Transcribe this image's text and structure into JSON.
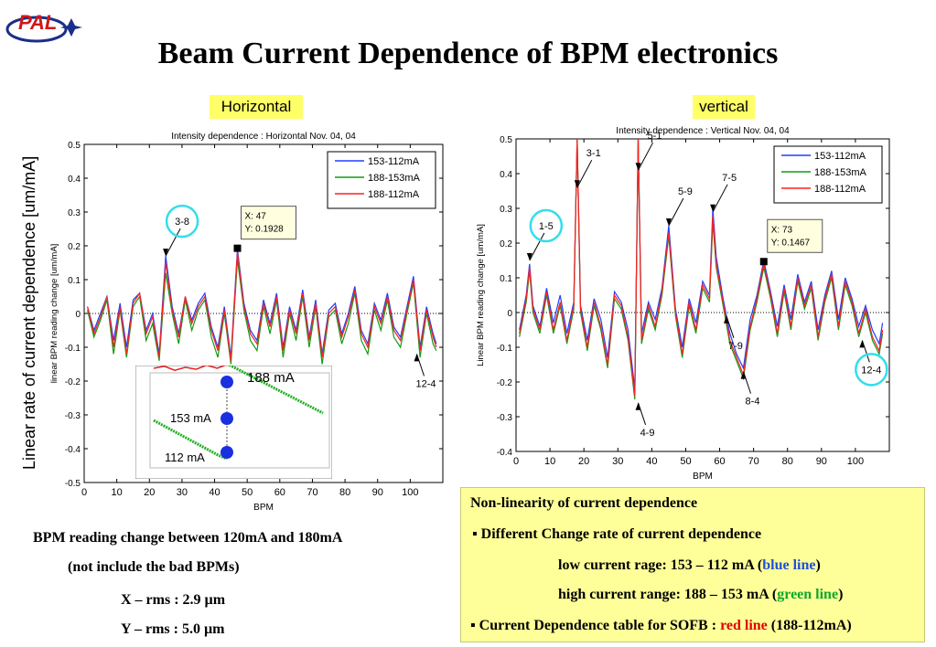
{
  "logo_text": "PAL",
  "title": "Beam Current Dependence of BPM electronics",
  "left_label": "Horizontal",
  "right_label": "vertical",
  "outer_ylabel": "Linear rate of current dependence  [um/mA]",
  "colors": {
    "blue": "#1f3fff",
    "green": "#149a14",
    "red": "#ff2020",
    "pill": "#ffff66",
    "circle": "#33ddee"
  },
  "chart_data": [
    {
      "type": "line",
      "title": "Intensity dependence : Horizontal    Nov. 04, 04",
      "xlabel": "BPM",
      "ylabel": "linear BPM reading change  [um/mA]",
      "xlim": [
        0,
        110
      ],
      "ylim": [
        -0.5,
        0.5
      ],
      "xticks": [
        0,
        10,
        20,
        30,
        40,
        50,
        60,
        70,
        80,
        90,
        100
      ],
      "yticks": [
        "0.5",
        "0.4",
        "0.3",
        "0.2",
        "0.1",
        "0",
        "-0.1",
        "-0.2",
        "-0.3",
        "-0.4",
        "-0.5"
      ],
      "legend": [
        "153-112mA",
        "188-153mA",
        "188-112mA"
      ],
      "legend_position": "top-right",
      "datatip": {
        "x_text": "X: 47",
        "y_text": "Y: 0.1928",
        "x": 47,
        "y": 0.1928
      },
      "annotations": [
        {
          "text": "3-8",
          "x": 25,
          "y": 0.17,
          "circled": true
        },
        {
          "text": "12-4",
          "x": 102,
          "y": -0.12,
          "circled": false
        }
      ],
      "x": [
        1,
        3,
        5,
        7,
        9,
        11,
        13,
        15,
        17,
        19,
        21,
        23,
        25,
        27,
        29,
        31,
        33,
        35,
        37,
        39,
        41,
        43,
        45,
        47,
        49,
        51,
        53,
        55,
        57,
        59,
        61,
        63,
        65,
        67,
        69,
        71,
        73,
        75,
        77,
        79,
        81,
        83,
        85,
        87,
        89,
        91,
        93,
        95,
        97,
        99,
        101,
        103,
        105,
        107,
        108
      ],
      "series": [
        {
          "name": "153-112mA",
          "values": [
            0.02,
            -0.05,
            0.0,
            0.05,
            -0.08,
            0.03,
            -0.1,
            0.04,
            0.06,
            -0.05,
            0.0,
            -0.12,
            0.17,
            0.02,
            -0.06,
            0.05,
            -0.02,
            0.03,
            0.06,
            -0.04,
            -0.1,
            0.02,
            -0.13,
            0.19,
            0.03,
            -0.05,
            -0.08,
            0.04,
            -0.03,
            0.06,
            -0.1,
            0.02,
            -0.05,
            0.07,
            -0.07,
            0.04,
            -0.12,
            0.01,
            0.03,
            -0.06,
            0.0,
            0.08,
            -0.05,
            -0.09,
            0.03,
            -0.02,
            0.06,
            -0.04,
            -0.07,
            0.02,
            0.11,
            -0.1,
            0.02,
            -0.06,
            -0.09
          ]
        },
        {
          "name": "188-153mA",
          "values": [
            0.01,
            -0.07,
            -0.02,
            0.04,
            -0.12,
            0.01,
            -0.13,
            0.02,
            0.05,
            -0.08,
            -0.03,
            -0.14,
            0.12,
            0.0,
            -0.09,
            0.04,
            -0.05,
            0.01,
            0.04,
            -0.07,
            -0.13,
            0.0,
            -0.15,
            0.16,
            0.01,
            -0.08,
            -0.11,
            0.02,
            -0.06,
            0.04,
            -0.13,
            0.0,
            -0.08,
            0.05,
            -0.1,
            0.02,
            -0.15,
            -0.01,
            0.01,
            -0.09,
            -0.03,
            0.06,
            -0.08,
            -0.12,
            0.01,
            -0.05,
            0.04,
            -0.07,
            -0.1,
            0.0,
            0.09,
            -0.13,
            0.0,
            -0.09,
            -0.11
          ]
        },
        {
          "name": "188-112mA",
          "values": [
            0.02,
            -0.06,
            -0.01,
            0.05,
            -0.1,
            0.02,
            -0.12,
            0.03,
            0.06,
            -0.06,
            -0.01,
            -0.13,
            0.15,
            0.01,
            -0.07,
            0.05,
            -0.03,
            0.02,
            0.05,
            -0.05,
            -0.11,
            0.01,
            -0.14,
            0.18,
            0.02,
            -0.06,
            -0.09,
            0.03,
            -0.04,
            0.05,
            -0.11,
            0.01,
            -0.06,
            0.06,
            -0.08,
            0.03,
            -0.13,
            0.0,
            0.02,
            -0.07,
            -0.01,
            0.07,
            -0.06,
            -0.1,
            0.02,
            -0.03,
            0.05,
            -0.05,
            -0.08,
            0.01,
            0.1,
            -0.11,
            0.01,
            -0.07,
            -0.1
          ]
        }
      ]
    },
    {
      "type": "line",
      "title": "Intensity dependence : Vertical      Nov. 04, 04",
      "xlabel": "BPM",
      "ylabel": "Linear BPM reading change  [um/mA]",
      "xlim": [
        0,
        110
      ],
      "ylim": [
        -0.4,
        0.5
      ],
      "xticks": [
        0,
        10,
        20,
        30,
        40,
        50,
        60,
        70,
        80,
        90,
        100
      ],
      "yticks": [
        "0.5",
        "0.4",
        "0.3",
        "0.2",
        "0.1",
        "0",
        "-0.1",
        "-0.2",
        "-0.3",
        "-0.4"
      ],
      "legend": [
        "153-112mA",
        "188-153mA",
        "188-112mA"
      ],
      "legend_position": "top-right",
      "datatip": {
        "x_text": "X: 73",
        "y_text": "Y: 0.1467",
        "x": 73,
        "y": 0.1467
      },
      "annotations": [
        {
          "text": "3-1",
          "x": 18,
          "y": 0.36,
          "circled": false
        },
        {
          "text": "5-1",
          "x": 36,
          "y": 0.41,
          "circled": false
        },
        {
          "text": "1-5",
          "x": 4,
          "y": 0.15,
          "circled": true
        },
        {
          "text": "5-9",
          "x": 45,
          "y": 0.25,
          "circled": false
        },
        {
          "text": "7-5",
          "x": 58,
          "y": 0.29,
          "circled": false
        },
        {
          "text": "7-9",
          "x": 62,
          "y": -0.01,
          "circled": false
        },
        {
          "text": "8-4",
          "x": 67,
          "y": -0.17,
          "circled": false
        },
        {
          "text": "4-9",
          "x": 36,
          "y": -0.26,
          "circled": false
        },
        {
          "text": "12-4",
          "x": 102,
          "y": -0.08,
          "circled": true
        }
      ],
      "x": [
        1,
        3,
        4,
        5,
        7,
        9,
        11,
        13,
        15,
        17,
        18,
        19,
        21,
        23,
        25,
        27,
        29,
        31,
        33,
        35,
        36,
        37,
        39,
        41,
        43,
        45,
        47,
        49,
        51,
        53,
        55,
        57,
        58,
        59,
        61,
        63,
        65,
        67,
        69,
        71,
        73,
        75,
        77,
        79,
        81,
        83,
        85,
        87,
        89,
        91,
        93,
        95,
        97,
        99,
        101,
        103,
        105,
        107,
        108
      ],
      "series": [
        {
          "name": "153-112mA",
          "values": [
            -0.05,
            0.05,
            0.14,
            0.02,
            -0.04,
            0.07,
            -0.03,
            0.05,
            -0.06,
            0.03,
            0.5,
            0.02,
            -0.08,
            0.04,
            -0.02,
            -0.13,
            0.06,
            0.03,
            -0.05,
            -0.22,
            0.5,
            -0.06,
            0.03,
            -0.02,
            0.07,
            0.25,
            0.01,
            -0.1,
            0.04,
            -0.03,
            0.09,
            0.05,
            0.3,
            0.16,
            0.04,
            -0.06,
            -0.12,
            -0.16,
            -0.02,
            0.05,
            0.15,
            0.06,
            -0.04,
            0.08,
            -0.02,
            0.11,
            0.03,
            0.09,
            -0.05,
            0.05,
            0.12,
            -0.02,
            0.1,
            0.04,
            -0.04,
            0.02,
            -0.05,
            -0.09,
            -0.03
          ]
        },
        {
          "name": "188-153mA",
          "values": [
            -0.07,
            0.03,
            0.12,
            0.0,
            -0.06,
            0.05,
            -0.06,
            0.02,
            -0.09,
            0.01,
            0.5,
            0.0,
            -0.11,
            0.02,
            -0.05,
            -0.16,
            0.04,
            0.01,
            -0.08,
            -0.25,
            0.5,
            -0.09,
            0.01,
            -0.05,
            0.05,
            0.22,
            -0.01,
            -0.13,
            0.02,
            -0.06,
            0.07,
            0.03,
            0.26,
            0.13,
            0.02,
            -0.09,
            -0.14,
            -0.19,
            -0.05,
            0.03,
            0.13,
            0.04,
            -0.07,
            0.06,
            -0.05,
            0.09,
            0.01,
            0.07,
            -0.08,
            0.03,
            0.1,
            -0.05,
            0.08,
            0.02,
            -0.07,
            0.0,
            -0.08,
            -0.12,
            -0.06
          ]
        },
        {
          "name": "188-112mA",
          "values": [
            -0.06,
            0.04,
            0.13,
            0.01,
            -0.05,
            0.06,
            -0.05,
            0.03,
            -0.08,
            0.02,
            0.5,
            0.01,
            -0.1,
            0.03,
            -0.04,
            -0.15,
            0.05,
            0.02,
            -0.07,
            -0.24,
            0.5,
            -0.08,
            0.02,
            -0.04,
            0.06,
            0.23,
            0.0,
            -0.12,
            0.03,
            -0.05,
            0.08,
            0.04,
            0.28,
            0.14,
            0.03,
            -0.08,
            -0.13,
            -0.18,
            -0.04,
            0.04,
            0.14,
            0.05,
            -0.06,
            0.07,
            -0.04,
            0.1,
            0.02,
            0.08,
            -0.07,
            0.04,
            0.11,
            -0.04,
            0.09,
            0.03,
            -0.06,
            0.01,
            -0.07,
            -0.11,
            -0.05
          ]
        }
      ]
    }
  ],
  "inset": {
    "labels": [
      "188 mA",
      "153 mA",
      "112 mA"
    ],
    "red_trace": [
      0.7,
      0.72,
      0.68,
      0.71,
      0.69,
      0.73,
      0.7,
      0.74,
      0.76,
      0.75,
      0.78,
      0.77,
      0.8,
      0.79,
      0.82,
      0.83,
      0.84
    ],
    "green_upper": [
      0.85,
      0.8,
      0.75,
      0.7,
      0.65,
      0.6,
      0.55,
      0.5,
      0.45,
      0.4
    ],
    "green_lower": [
      0.5,
      0.46,
      0.42,
      0.38,
      0.34,
      0.3,
      0.26,
      0.22,
      0.18,
      0.15
    ]
  },
  "summary": {
    "line1": "BPM reading change between 120mA and 180mA",
    "line2": "(not include the bad BPMs)",
    "line3": "X – rms : 2.9 µm",
    "line4": "Y – rms : 5.0 µm"
  },
  "notes": {
    "heading": "Non-linearity of current dependence",
    "bullet1": "▪  Different Change rate of current dependence",
    "low_prefix": "low current rage: 153 – 112 mA (",
    "low_color": "blue line",
    "low_suffix": ")",
    "high_prefix": "high current range: 188 – 153 mA (",
    "high_color": "green line",
    "high_suffix": ")",
    "bullet2_prefix": "▪ Current Dependence table for SOFB : ",
    "bullet2_color": "red line",
    "bullet2_suffix": " (188-112mA)"
  }
}
